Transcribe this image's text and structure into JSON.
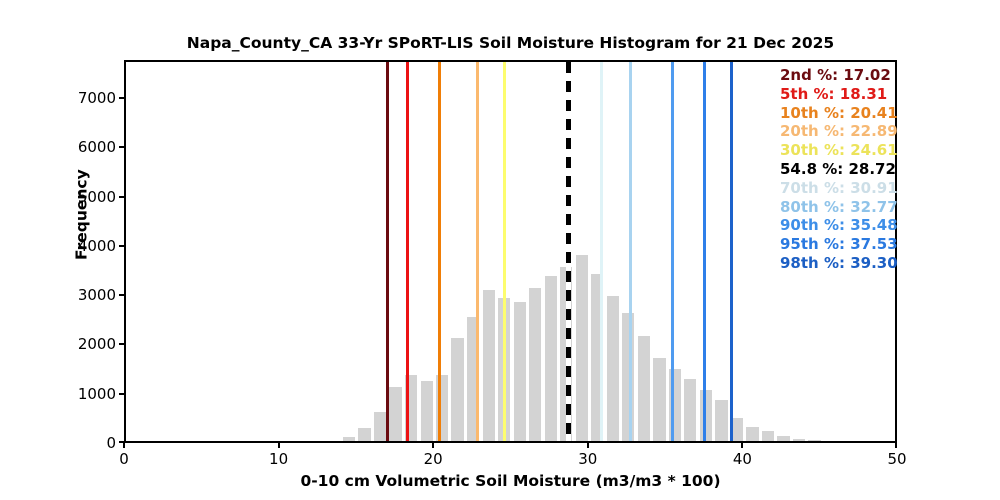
{
  "chart_data": {
    "type": "bar",
    "subtype": "histogram",
    "title": "Napa_County_CA 33-Yr SPoRT-LIS Soil Moisture Histogram for 21 Dec 2025",
    "xlabel": "0-10 cm Volumetric Soil Moisture (m3/m3 * 100)",
    "ylabel": "Frequency",
    "xlim": [
      0,
      50
    ],
    "ylim": [
      0,
      7770
    ],
    "xticks": [
      0,
      10,
      20,
      30,
      40,
      50
    ],
    "yticks": [
      0,
      1000,
      2000,
      3000,
      4000,
      5000,
      6000,
      7000
    ],
    "grid": false,
    "bar_color": "#d3d3d3",
    "bin_width": 1.0,
    "bar_fill_fraction": 0.8,
    "bin_centers": [
      14.56,
      15.56,
      16.57,
      17.57,
      18.57,
      19.58,
      20.58,
      21.58,
      22.59,
      23.59,
      24.59,
      25.6,
      26.6,
      27.6,
      28.61,
      29.61,
      30.61,
      31.62,
      32.62,
      33.62,
      34.63,
      35.63,
      36.63,
      37.64,
      38.64,
      39.64,
      40.65,
      41.65,
      42.65,
      43.66,
      44.66
    ],
    "values": [
      80,
      265,
      590,
      1095,
      1330,
      1210,
      1335,
      2090,
      2515,
      3060,
      2900,
      2815,
      3105,
      3340,
      3525,
      3775,
      3390,
      2935,
      2600,
      2125,
      1685,
      1465,
      1260,
      1030,
      840,
      465,
      280,
      210,
      95,
      40,
      15
    ],
    "percentile_lines": [
      {
        "name": "p2",
        "label": "2nd %",
        "value": 17.02,
        "color": "#6b0b10",
        "style": "solid"
      },
      {
        "name": "p5",
        "label": "5th %",
        "value": 18.31,
        "color": "#ec1214",
        "style": "solid"
      },
      {
        "name": "p10",
        "label": "10th %",
        "value": 20.41,
        "color": "#f07e07",
        "style": "solid"
      },
      {
        "name": "p20",
        "label": "20th %",
        "value": 22.89,
        "color": "#fbb96e",
        "style": "solid"
      },
      {
        "name": "p30",
        "label": "30th %",
        "value": 24.61,
        "color": "#fdfd6e",
        "style": "solid"
      },
      {
        "name": "median",
        "label": "54.8 %",
        "value": 28.72,
        "color": "#000000",
        "style": "dashed"
      },
      {
        "name": "p70",
        "label": "70th %",
        "value": 30.91,
        "color": "#dff3f7",
        "style": "solid"
      },
      {
        "name": "p80",
        "label": "80th %",
        "value": 32.77,
        "color": "#a8d3f0",
        "style": "solid"
      },
      {
        "name": "p90",
        "label": "90th %",
        "value": 35.48,
        "color": "#4f9bf0",
        "style": "solid"
      },
      {
        "name": "p95",
        "label": "95th %",
        "value": 37.53,
        "color": "#2f7fe9",
        "style": "solid"
      },
      {
        "name": "p98",
        "label": "98th %",
        "value": 39.3,
        "color": "#1d62cb",
        "style": "solid"
      }
    ],
    "legend": {
      "position": "upper-right",
      "frame": false,
      "entries": [
        {
          "text": "2nd %: 17.02",
          "color": "#6b0b10"
        },
        {
          "text": "5th %: 18.31",
          "color": "#e01b18"
        },
        {
          "text": "10th %: 20.41",
          "color": "#e8821e"
        },
        {
          "text": "20th %: 22.89",
          "color": "#f6b873"
        },
        {
          "text": "30th %: 24.61",
          "color": "#ece35a"
        },
        {
          "text": "54.8 %: 28.72",
          "color": "#000000"
        },
        {
          "text": "70th %: 30.91",
          "color": "#ccdee7"
        },
        {
          "text": "80th %: 32.77",
          "color": "#8fc3e9"
        },
        {
          "text": "90th %: 35.48",
          "color": "#3d8ee8"
        },
        {
          "text": "95th %: 37.53",
          "color": "#2a79e0"
        },
        {
          "text": "98th %: 39.30",
          "color": "#1c5fc4"
        }
      ]
    }
  }
}
